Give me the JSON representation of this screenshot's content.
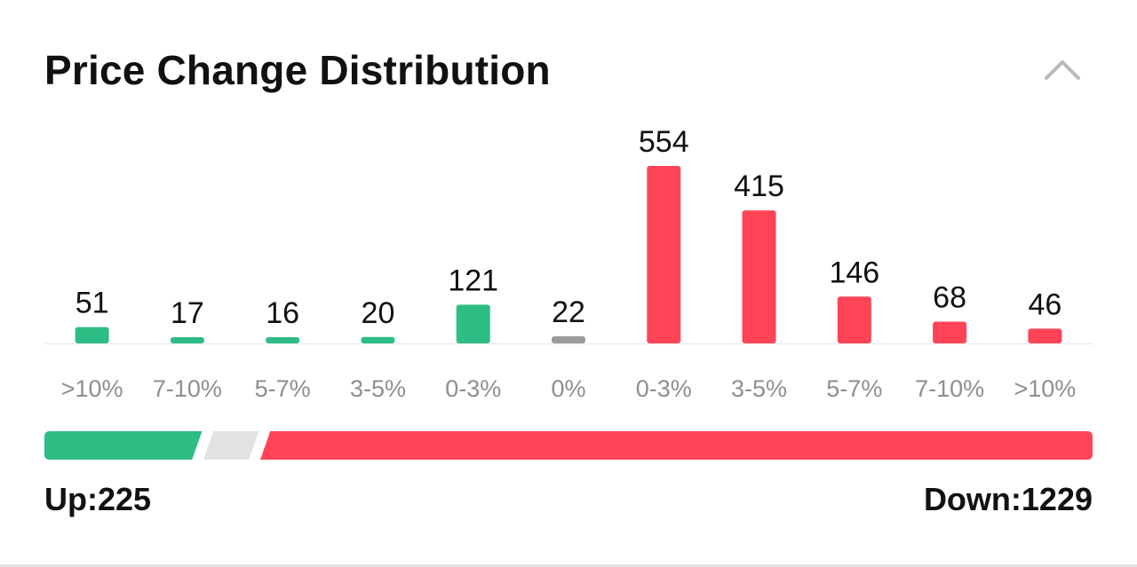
{
  "title": "Price Change Distribution",
  "collapse_icon": "chevron-up-icon",
  "colors": {
    "up": "#2dbd85",
    "flat": "#9b9b9b",
    "down": "#ff4457",
    "flat_ratio": "#e2e2e4"
  },
  "chart_data": {
    "type": "bar",
    "title": "Price Change Distribution",
    "categories": [
      ">10%",
      "7-10%",
      "5-7%",
      "3-5%",
      "0-3%",
      "0%",
      "0-3%",
      "3-5%",
      "5-7%",
      "7-10%",
      ">10%"
    ],
    "values": [
      51,
      17,
      16,
      20,
      121,
      22,
      554,
      415,
      146,
      68,
      46
    ],
    "direction": [
      "up",
      "up",
      "up",
      "up",
      "up",
      "flat",
      "down",
      "down",
      "down",
      "down",
      "down"
    ],
    "xlabel": "",
    "ylabel": "",
    "grid": false,
    "data_labels": true
  },
  "summary": {
    "up_label": "Up:225",
    "down_label": "Down:1229",
    "up_count": 225,
    "flat_count": 22,
    "down_count": 1229
  }
}
